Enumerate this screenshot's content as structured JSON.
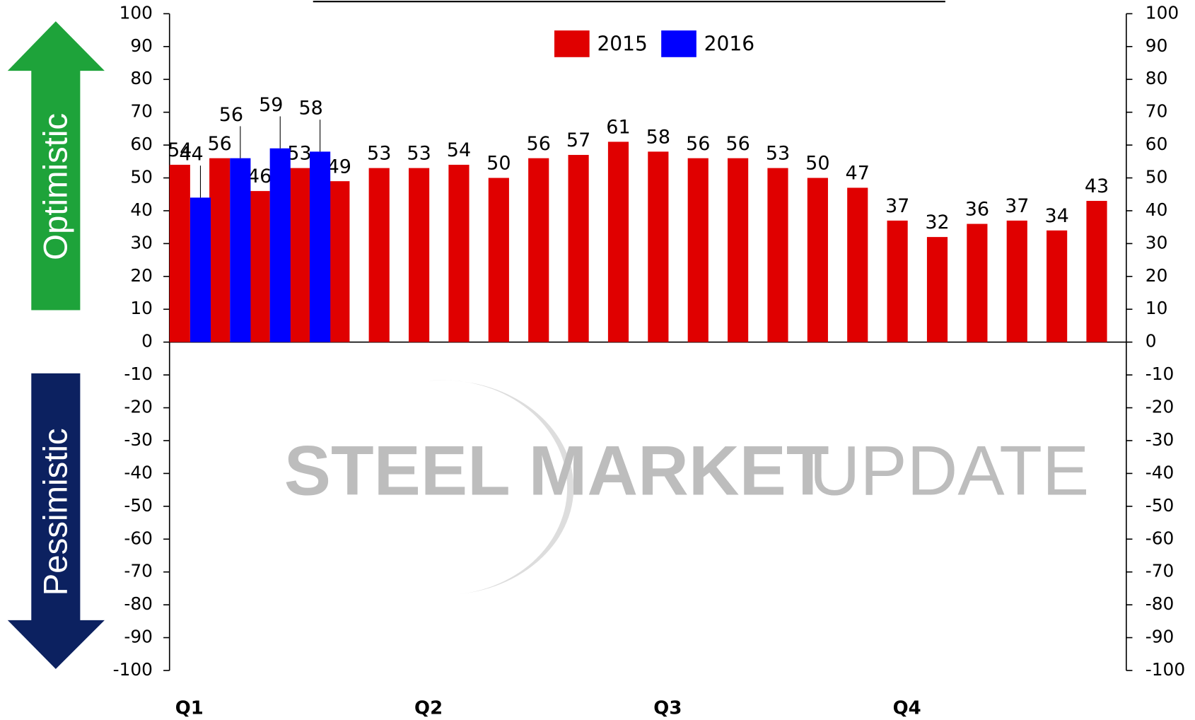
{
  "chart_data": {
    "type": "bar",
    "annotations": {
      "up": "Optimistic",
      "down": "Pessimistic",
      "watermark_bold": "STEEL MARKET",
      "watermark_light": "UPDATE"
    },
    "categories": [
      "Q1",
      null,
      null,
      null,
      null,
      null,
      "Q2",
      null,
      null,
      null,
      null,
      null,
      "Q3",
      null,
      null,
      null,
      null,
      null,
      "Q4",
      null,
      null,
      null,
      null,
      null
    ],
    "series": [
      {
        "name": "2015",
        "color": "#e00000",
        "values": [
          54,
          56,
          46,
          53,
          49,
          53,
          53,
          54,
          50,
          56,
          57,
          61,
          58,
          56,
          56,
          53,
          50,
          47,
          37,
          32,
          36,
          37,
          34,
          43
        ]
      },
      {
        "name": "2016",
        "color": "#0000ff",
        "values": [
          44,
          56,
          59,
          58,
          null,
          null,
          null,
          null,
          null,
          null,
          null,
          null,
          null,
          null,
          null,
          null,
          null,
          null,
          null,
          null,
          null,
          null,
          null,
          null
        ]
      }
    ],
    "ylim": [
      -100,
      100
    ],
    "yticks": [
      -100,
      -90,
      -80,
      -70,
      -60,
      -50,
      -40,
      -30,
      -20,
      -10,
      0,
      10,
      20,
      30,
      40,
      50,
      60,
      70,
      80,
      90,
      100
    ],
    "y2lim": [
      -100,
      100
    ],
    "y2ticks": [
      -100,
      -90,
      -80,
      -70,
      -60,
      -50,
      -40,
      -30,
      -20,
      -10,
      0,
      10,
      20,
      30,
      40,
      50,
      60,
      70,
      80,
      90,
      100
    ],
    "legend": "top"
  }
}
